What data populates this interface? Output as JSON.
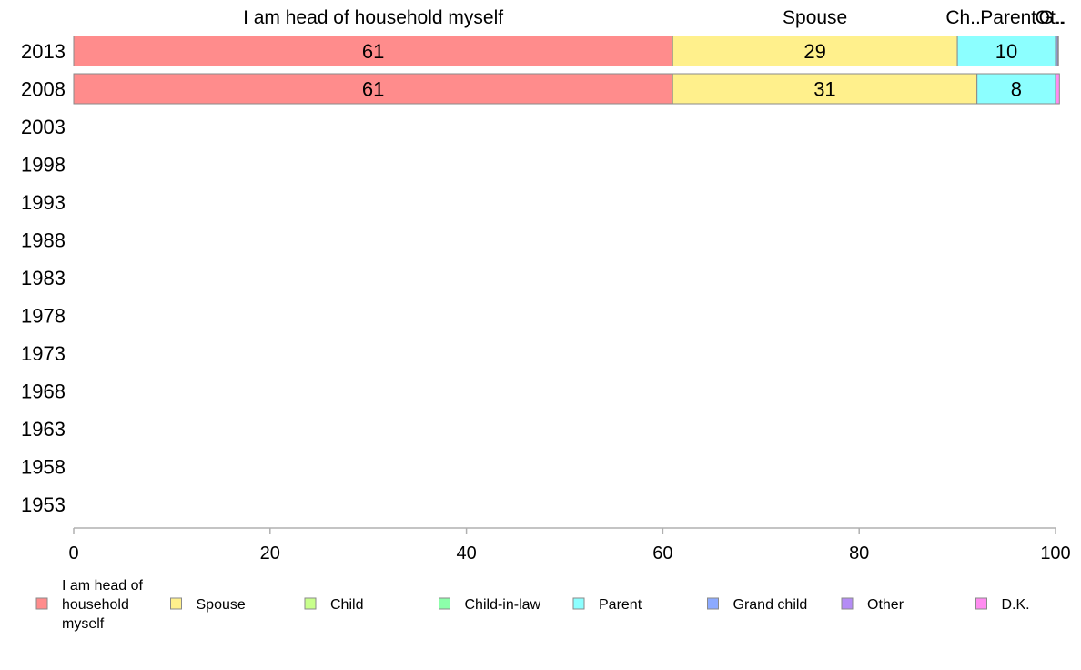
{
  "chart_data": {
    "type": "bar",
    "orientation": "horizontal-stacked",
    "title": "",
    "xlabel": "",
    "ylabel": "",
    "xlim": [
      0,
      100
    ],
    "x_ticks": [
      0,
      20,
      40,
      60,
      80,
      100
    ],
    "grid": false,
    "legend_position": "bottom",
    "categories": [
      "2013",
      "2008",
      "2003",
      "1998",
      "1993",
      "1988",
      "1983",
      "1978",
      "1973",
      "1968",
      "1963",
      "1958",
      "1953"
    ],
    "top_labels": [
      {
        "text": "I am head of household myself",
        "center": 30.5
      },
      {
        "text": "Spouse",
        "center": 75.5
      },
      {
        "text": "Ch..",
        "center": 90.6
      },
      {
        "text": "Parent",
        "center": 95.2
      },
      {
        "text": "Ot..",
        "center": 99.5
      },
      {
        "text": "G..",
        "center": 99.6
      }
    ],
    "series": [
      {
        "name": "I am head of household myself",
        "color": "#ff8c8c",
        "values": [
          61,
          61,
          null,
          null,
          null,
          null,
          null,
          null,
          null,
          null,
          null,
          null,
          null
        ]
      },
      {
        "name": "Spouse",
        "color": "#fff08c",
        "values": [
          29,
          31,
          null,
          null,
          null,
          null,
          null,
          null,
          null,
          null,
          null,
          null,
          null
        ]
      },
      {
        "name": "Child",
        "color": "#c8ff8c",
        "values": [
          0,
          0,
          null,
          null,
          null,
          null,
          null,
          null,
          null,
          null,
          null,
          null,
          null
        ]
      },
      {
        "name": "Child-in-law",
        "color": "#8cffaa",
        "values": [
          0,
          0,
          null,
          null,
          null,
          null,
          null,
          null,
          null,
          null,
          null,
          null,
          null
        ]
      },
      {
        "name": "Parent",
        "color": "#8cffff",
        "values": [
          10,
          8,
          null,
          null,
          null,
          null,
          null,
          null,
          null,
          null,
          null,
          null,
          null
        ]
      },
      {
        "name": "Grand child",
        "color": "#8caaff",
        "values": [
          0.2,
          0,
          null,
          null,
          null,
          null,
          null,
          null,
          null,
          null,
          null,
          null,
          null
        ]
      },
      {
        "name": "Other",
        "color": "#b48cf5",
        "values": [
          0.1,
          0,
          null,
          null,
          null,
          null,
          null,
          null,
          null,
          null,
          null,
          null,
          null
        ]
      },
      {
        "name": "D.K.",
        "color": "#ff8cf0",
        "values": [
          0,
          0.4,
          null,
          null,
          null,
          null,
          null,
          null,
          null,
          null,
          null,
          null,
          null
        ]
      }
    ],
    "bar_labels": [
      [
        {
          "series": 0,
          "text": "61"
        },
        {
          "series": 1,
          "text": "29"
        },
        {
          "series": 4,
          "text": "10"
        }
      ],
      [
        {
          "series": 0,
          "text": "61"
        },
        {
          "series": 1,
          "text": "31"
        },
        {
          "series": 4,
          "text": "8"
        }
      ]
    ],
    "legend": [
      {
        "lines": [
          "I am head of",
          "household",
          "myself"
        ],
        "color": "#ff8c8c"
      },
      {
        "lines": [
          "Spouse"
        ],
        "color": "#fff08c"
      },
      {
        "lines": [
          "Child"
        ],
        "color": "#c8ff8c"
      },
      {
        "lines": [
          "Child-in-law"
        ],
        "color": "#8cffaa"
      },
      {
        "lines": [
          "Parent"
        ],
        "color": "#8cffff"
      },
      {
        "lines": [
          "Grand child"
        ],
        "color": "#8caaff"
      },
      {
        "lines": [
          "Other"
        ],
        "color": "#b48cf5"
      },
      {
        "lines": [
          "D.K."
        ],
        "color": "#ff8cf0"
      }
    ]
  }
}
